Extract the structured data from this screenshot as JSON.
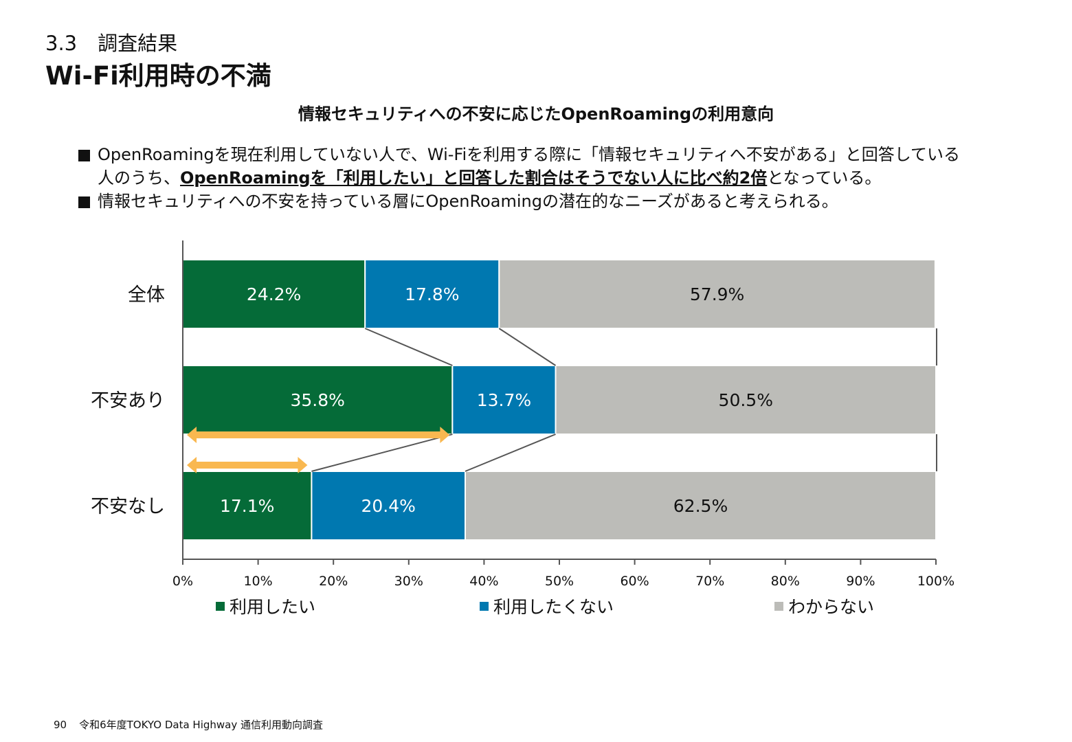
{
  "header": {
    "section_number": "3.3",
    "section_title": "調査結果",
    "page_title": "Wi-Fi利用時の不満"
  },
  "subtitle": "情報セキュリティへの不安に応じたOpenRoamingの利用意向",
  "bullets": [
    {
      "before": "OpenRoamingを現在利用していない人で、Wi-Fiを利用する際に「情報セキュリティへ不安がある」と回答している人のうち、",
      "emphasis": "OpenRoamingを「利用したい」と回答した割合はそうでない人に比べ約2倍",
      "after": "となっている。"
    },
    {
      "before": "情報セキュリティへの不安を持っている層にOpenRoamingの潜在的なニーズがあると考えられる。",
      "emphasis": "",
      "after": ""
    }
  ],
  "chart_data": {
    "type": "bar",
    "orientation": "horizontal",
    "stacked": "percent",
    "categories": [
      "全体",
      "不安あり",
      "不安なし"
    ],
    "series": [
      {
        "name": "利用したい",
        "values": [
          24.2,
          35.8,
          17.1
        ],
        "color": "#056b38",
        "label_color": "#ffffff"
      },
      {
        "name": "利用したくない",
        "values": [
          17.8,
          13.7,
          20.4
        ],
        "color": "#0078b0",
        "label_color": "#ffffff"
      },
      {
        "name": "わからない",
        "values": [
          57.9,
          50.5,
          62.5
        ],
        "color": "#bcbcb8",
        "label_color": "#111111"
      }
    ],
    "data_labels": [
      [
        "24.2%",
        "17.8%",
        "57.9%"
      ],
      [
        "35.8%",
        "13.7%",
        "50.5%"
      ],
      [
        "17.1%",
        "20.4%",
        "62.5%"
      ]
    ],
    "x_ticks": [
      "0%",
      "10%",
      "20%",
      "30%",
      "40%",
      "50%",
      "60%",
      "70%",
      "80%",
      "90%",
      "100%"
    ],
    "xlim": [
      0,
      100
    ],
    "legend": "bottom",
    "arrow_color": "#f9b850",
    "connector_color": "#555555"
  },
  "footer": {
    "page_number": "90",
    "source": "令和6年度TOKYO Data Highway 通信利用動向調査"
  }
}
